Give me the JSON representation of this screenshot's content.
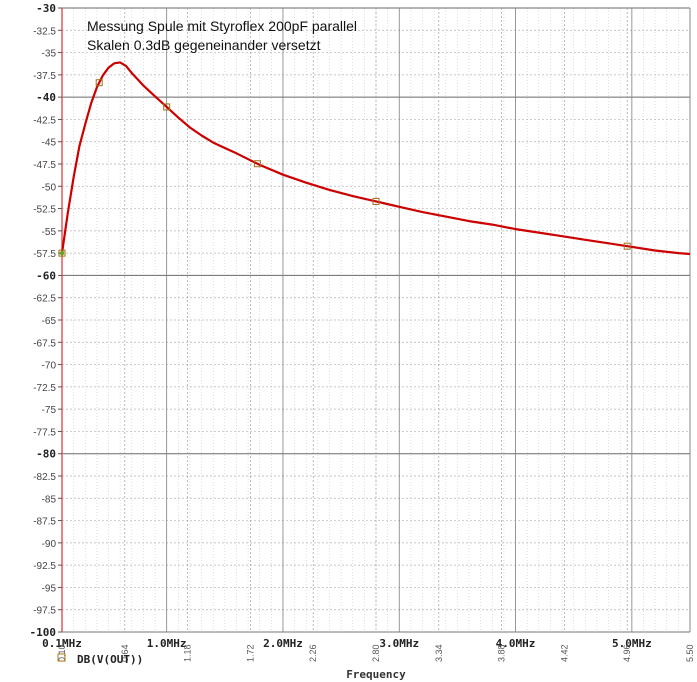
{
  "chart_data": {
    "type": "line",
    "title_lines": [
      "Messung Spule mit Styroflex 200pF parallel",
      "Skalen 0.3dB gegeneinander versetzt"
    ],
    "xlabel": "Frequency",
    "legend": "DB(V(OUT))",
    "xlim": [
      0.1,
      5.5
    ],
    "ylim": [
      -100,
      -30
    ],
    "ytick_values": [
      -30,
      -32.5,
      -35,
      -37.5,
      -40,
      -42.5,
      -45,
      -47.5,
      -50,
      -52.5,
      -55,
      -57.5,
      -60,
      -62.5,
      -65,
      -67.5,
      -70,
      -72.5,
      -75,
      -77.5,
      -80,
      -82.5,
      -85,
      -87.5,
      -90,
      -92.5,
      -95,
      -97.5,
      -100
    ],
    "ytick_labels": [
      "-30",
      "-32.5",
      "-35",
      "-37.5",
      "-40",
      "-42.5",
      "-45",
      "-47.5",
      "-50",
      "-52.5",
      "-55",
      "-57.5",
      "-60",
      "-62.5",
      "-65",
      "-67.5",
      "-70",
      "-72.5",
      "-75",
      "-77.5",
      "-80",
      "-82.5",
      "-85",
      "-87.5",
      "-90",
      "-92.5",
      "-95",
      "-97.5",
      "-100"
    ],
    "ytick_bold": [
      "-30",
      "-40",
      "-60",
      "-80",
      "-100"
    ],
    "xticks_primary": [
      {
        "x": 0.1,
        "label": "0.1MHz"
      },
      {
        "x": 1.0,
        "label": "1.0MHz"
      },
      {
        "x": 2.0,
        "label": "2.0MHz"
      },
      {
        "x": 3.0,
        "label": "3.0MHz"
      },
      {
        "x": 4.0,
        "label": "4.0MHz"
      },
      {
        "x": 5.0,
        "label": "5.0MHz"
      }
    ],
    "xticks_secondary": [
      {
        "x": 0.1,
        "label": "0.10"
      },
      {
        "x": 0.64,
        "label": "0.64"
      },
      {
        "x": 1.18,
        "label": "1.18"
      },
      {
        "x": 1.72,
        "label": "1.72"
      },
      {
        "x": 2.26,
        "label": "2.26"
      },
      {
        "x": 2.8,
        "label": "2.80"
      },
      {
        "x": 3.34,
        "label": "3.34"
      },
      {
        "x": 3.88,
        "label": "3.88"
      },
      {
        "x": 4.42,
        "label": "4.42"
      },
      {
        "x": 4.96,
        "label": "4.96"
      },
      {
        "x": 5.5,
        "label": "5.50"
      }
    ],
    "series": [
      {
        "name": "DB(V(OUT))",
        "color": "#cc0000",
        "x": [
          0.1,
          0.15,
          0.2,
          0.25,
          0.3,
          0.35,
          0.4,
          0.45,
          0.5,
          0.55,
          0.6,
          0.65,
          0.7,
          0.75,
          0.8,
          0.85,
          0.9,
          1.0,
          1.1,
          1.2,
          1.3,
          1.4,
          1.5,
          1.6,
          1.8,
          2.0,
          2.2,
          2.4,
          2.6,
          2.8,
          3.0,
          3.2,
          3.4,
          3.6,
          3.8,
          4.0,
          4.2,
          4.4,
          4.6,
          4.8,
          5.0,
          5.2,
          5.4,
          5.5
        ],
        "y": [
          -57.5,
          -53.0,
          -49.0,
          -45.5,
          -43.0,
          -40.7,
          -38.9,
          -37.6,
          -36.7,
          -36.2,
          -36.1,
          -36.5,
          -37.3,
          -38.0,
          -38.7,
          -39.3,
          -39.9,
          -41.1,
          -42.3,
          -43.4,
          -44.3,
          -45.1,
          -45.7,
          -46.3,
          -47.6,
          -48.7,
          -49.6,
          -50.4,
          -51.1,
          -51.7,
          -52.3,
          -52.9,
          -53.4,
          -53.9,
          -54.3,
          -54.8,
          -55.2,
          -55.6,
          -56.0,
          -56.4,
          -56.8,
          -57.2,
          -57.5,
          -57.6
        ]
      }
    ],
    "markers_x": [
      0.1,
      0.42,
      1.0,
      1.78,
      2.8,
      4.96
    ]
  }
}
